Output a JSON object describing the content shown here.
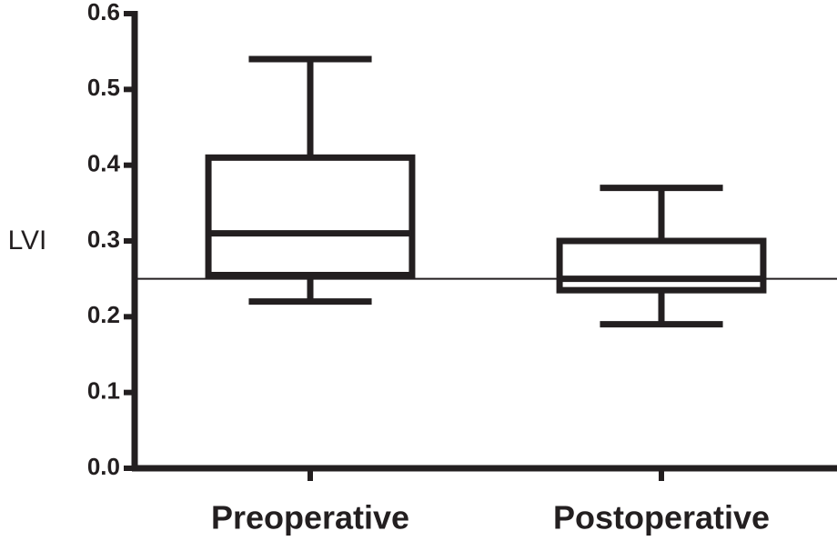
{
  "chart_data": {
    "type": "box",
    "y_label": "LVI",
    "categories": [
      "Preoperative",
      "Postoperative"
    ],
    "boxes": [
      {
        "min": 0.22,
        "q1": 0.255,
        "median": 0.31,
        "q3": 0.41,
        "max": 0.54
      },
      {
        "min": 0.19,
        "q1": 0.235,
        "median": 0.25,
        "q3": 0.3,
        "max": 0.37
      }
    ],
    "color": "#231f20",
    "reference_line": 0.25,
    "ylim": [
      0,
      0.6
    ],
    "yticks": [
      {
        "value": 0,
        "label": "0.0"
      },
      0.1,
      0.2,
      0.3,
      0.4,
      0.5,
      0.6
    ]
  }
}
